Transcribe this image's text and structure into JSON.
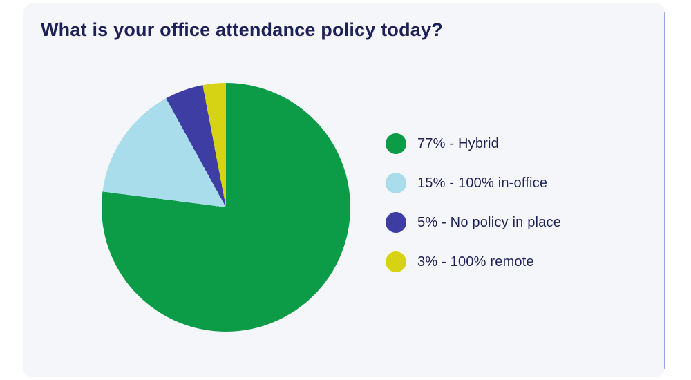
{
  "card": {
    "title": "What is your office attendance policy today?"
  },
  "colors": {
    "page_bg": "#ffffff",
    "card_bg": "#f5f6fa",
    "text": "#1e2157",
    "scrollbar": "#97a3e6"
  },
  "chart_data": {
    "type": "pie",
    "title": "What is your office attendance policy today?",
    "total": 100,
    "start_angle_deg": 0,
    "direction": "clockwise",
    "legend_position": "right",
    "slices": [
      {
        "label": "Hybrid",
        "value": 77,
        "color": "#0c9b46",
        "legend_label": "77% - Hybrid"
      },
      {
        "label": "100% in-office",
        "value": 15,
        "color": "#a9ddec",
        "legend_label": "15% - 100% in-office"
      },
      {
        "label": "No policy in place",
        "value": 5,
        "color": "#3d3da4",
        "legend_label": "5% - No policy in place"
      },
      {
        "label": "100% remote",
        "value": 3,
        "color": "#d6d214",
        "legend_label": "3% - 100% remote"
      }
    ]
  }
}
